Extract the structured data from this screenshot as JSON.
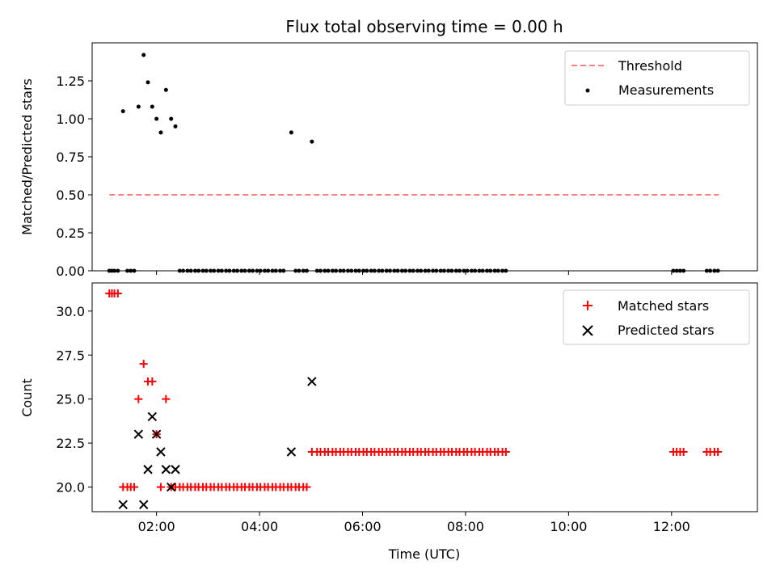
{
  "chart_data": [
    {
      "type": "scatter",
      "title": "Flux total observing time = 0.00 h",
      "ylabel": "Matched/Predicted stars",
      "xlabel": "",
      "xlim": [
        "00:45",
        "13:40"
      ],
      "ylim": [
        0.0,
        1.5
      ],
      "xticks": [
        "02:00",
        "04:00",
        "06:00",
        "08:00",
        "10:00",
        "12:00"
      ],
      "yticks": [
        "0.00",
        "0.25",
        "0.50",
        "0.75",
        "1.00",
        "1.25"
      ],
      "legend_position": "top-right",
      "legend": [
        "Threshold",
        "Measurements"
      ],
      "threshold": {
        "name": "Threshold",
        "y": 0.5,
        "x_start": "01:05",
        "x_end": "12:55",
        "color": "#ff7f7f",
        "style": "dashed"
      },
      "measurements": {
        "name": "Measurements",
        "color": "#000000",
        "points": [
          [
            "01:05",
            0
          ],
          [
            "01:08",
            0
          ],
          [
            "01:11",
            0
          ],
          [
            "01:15",
            0
          ],
          [
            "01:21",
            1.05
          ],
          [
            "01:26",
            0
          ],
          [
            "01:30",
            0
          ],
          [
            "01:34",
            0
          ],
          [
            "01:39",
            1.08
          ],
          [
            "01:45",
            1.42
          ],
          [
            "01:50",
            1.24
          ],
          [
            "01:55",
            1.08
          ],
          [
            "02:00",
            1.0
          ],
          [
            "02:05",
            0.91
          ],
          [
            "02:11",
            1.19
          ],
          [
            "02:17",
            1.0
          ],
          [
            "02:22",
            0.95
          ],
          [
            "02:27",
            0
          ],
          [
            "02:31",
            0
          ],
          [
            "02:36",
            0
          ],
          [
            "02:40",
            0
          ],
          [
            "02:45",
            0
          ],
          [
            "02:49",
            0
          ],
          [
            "02:54",
            0
          ],
          [
            "02:58",
            0
          ],
          [
            "03:03",
            0
          ],
          [
            "03:07",
            0
          ],
          [
            "03:12",
            0
          ],
          [
            "03:16",
            0
          ],
          [
            "03:21",
            0
          ],
          [
            "03:25",
            0
          ],
          [
            "03:30",
            0
          ],
          [
            "03:34",
            0
          ],
          [
            "03:39",
            0
          ],
          [
            "03:43",
            0
          ],
          [
            "03:48",
            0
          ],
          [
            "03:52",
            0
          ],
          [
            "03:57",
            0
          ],
          [
            "04:01",
            0
          ],
          [
            "04:06",
            0
          ],
          [
            "04:10",
            0
          ],
          [
            "04:15",
            0
          ],
          [
            "04:19",
            0
          ],
          [
            "04:24",
            0
          ],
          [
            "04:28",
            0
          ],
          [
            "04:37",
            0.91
          ],
          [
            "04:42",
            0
          ],
          [
            "04:46",
            0
          ],
          [
            "04:51",
            0
          ],
          [
            "04:55",
            0
          ],
          [
            "05:01",
            0.85
          ],
          [
            "05:07",
            0
          ],
          [
            "05:11",
            0
          ],
          [
            "05:16",
            0
          ],
          [
            "05:20",
            0
          ],
          [
            "05:25",
            0
          ],
          [
            "05:29",
            0
          ],
          [
            "05:34",
            0
          ],
          [
            "05:38",
            0
          ],
          [
            "05:43",
            0
          ],
          [
            "05:47",
            0
          ],
          [
            "05:52",
            0
          ],
          [
            "05:56",
            0
          ],
          [
            "06:01",
            0
          ],
          [
            "06:05",
            0
          ],
          [
            "06:10",
            0
          ],
          [
            "06:14",
            0
          ],
          [
            "06:19",
            0
          ],
          [
            "06:23",
            0
          ],
          [
            "06:28",
            0
          ],
          [
            "06:32",
            0
          ],
          [
            "06:37",
            0
          ],
          [
            "06:41",
            0
          ],
          [
            "06:46",
            0
          ],
          [
            "06:50",
            0
          ],
          [
            "06:55",
            0
          ],
          [
            "06:59",
            0
          ],
          [
            "07:04",
            0
          ],
          [
            "07:08",
            0
          ],
          [
            "07:13",
            0
          ],
          [
            "07:17",
            0
          ],
          [
            "07:22",
            0
          ],
          [
            "07:26",
            0
          ],
          [
            "07:31",
            0
          ],
          [
            "07:35",
            0
          ],
          [
            "07:40",
            0
          ],
          [
            "07:44",
            0
          ],
          [
            "07:49",
            0
          ],
          [
            "07:53",
            0
          ],
          [
            "07:58",
            0
          ],
          [
            "08:02",
            0
          ],
          [
            "08:07",
            0
          ],
          [
            "08:11",
            0
          ],
          [
            "08:16",
            0
          ],
          [
            "08:20",
            0
          ],
          [
            "08:25",
            0
          ],
          [
            "08:29",
            0
          ],
          [
            "08:34",
            0
          ],
          [
            "08:38",
            0
          ],
          [
            "08:43",
            0
          ],
          [
            "08:47",
            0
          ],
          [
            "12:02",
            0
          ],
          [
            "12:06",
            0
          ],
          [
            "12:10",
            0
          ],
          [
            "12:14",
            0
          ],
          [
            "12:41",
            0
          ],
          [
            "12:45",
            0
          ],
          [
            "12:50",
            0
          ],
          [
            "12:54",
            0
          ]
        ]
      }
    },
    {
      "type": "scatter",
      "xlabel": "Time (UTC)",
      "ylabel": "Count",
      "xlim": [
        "00:45",
        "13:40"
      ],
      "ylim": [
        18.6,
        31.6
      ],
      "xticks": [
        "02:00",
        "04:00",
        "06:00",
        "08:00",
        "10:00",
        "12:00"
      ],
      "yticks": [
        "20.0",
        "22.5",
        "25.0",
        "27.5",
        "30.0"
      ],
      "legend_position": "top-right",
      "legend": [
        "Matched stars",
        "Predicted stars"
      ],
      "series": [
        {
          "name": "Matched stars",
          "color": "#ff0000",
          "marker": "plus",
          "points": [
            [
              "01:05",
              31
            ],
            [
              "01:08",
              31
            ],
            [
              "01:11",
              31
            ],
            [
              "01:15",
              31
            ],
            [
              "01:21",
              20
            ],
            [
              "01:26",
              20
            ],
            [
              "01:30",
              20
            ],
            [
              "01:34",
              20
            ],
            [
              "01:39",
              25
            ],
            [
              "01:45",
              27
            ],
            [
              "01:50",
              26
            ],
            [
              "01:55",
              26
            ],
            [
              "02:00",
              23
            ],
            [
              "02:05",
              20
            ],
            [
              "02:11",
              25
            ],
            [
              "02:17",
              20
            ],
            [
              "02:22",
              20
            ],
            [
              "02:27",
              20
            ],
            [
              "02:31",
              20
            ],
            [
              "02:36",
              20
            ],
            [
              "02:40",
              20
            ],
            [
              "02:45",
              20
            ],
            [
              "02:49",
              20
            ],
            [
              "02:54",
              20
            ],
            [
              "02:58",
              20
            ],
            [
              "03:03",
              20
            ],
            [
              "03:07",
              20
            ],
            [
              "03:12",
              20
            ],
            [
              "03:16",
              20
            ],
            [
              "03:21",
              20
            ],
            [
              "03:25",
              20
            ],
            [
              "03:30",
              20
            ],
            [
              "03:34",
              20
            ],
            [
              "03:39",
              20
            ],
            [
              "03:43",
              20
            ],
            [
              "03:48",
              20
            ],
            [
              "03:52",
              20
            ],
            [
              "03:57",
              20
            ],
            [
              "04:01",
              20
            ],
            [
              "04:06",
              20
            ],
            [
              "04:10",
              20
            ],
            [
              "04:15",
              20
            ],
            [
              "04:19",
              20
            ],
            [
              "04:24",
              20
            ],
            [
              "04:28",
              20
            ],
            [
              "04:33",
              20
            ],
            [
              "04:37",
              20
            ],
            [
              "04:42",
              20
            ],
            [
              "04:46",
              20
            ],
            [
              "04:51",
              20
            ],
            [
              "04:55",
              20
            ],
            [
              "05:01",
              22
            ],
            [
              "05:07",
              22
            ],
            [
              "05:11",
              22
            ],
            [
              "05:16",
              22
            ],
            [
              "05:20",
              22
            ],
            [
              "05:25",
              22
            ],
            [
              "05:29",
              22
            ],
            [
              "05:34",
              22
            ],
            [
              "05:38",
              22
            ],
            [
              "05:43",
              22
            ],
            [
              "05:47",
              22
            ],
            [
              "05:52",
              22
            ],
            [
              "05:56",
              22
            ],
            [
              "06:01",
              22
            ],
            [
              "06:05",
              22
            ],
            [
              "06:10",
              22
            ],
            [
              "06:14",
              22
            ],
            [
              "06:19",
              22
            ],
            [
              "06:23",
              22
            ],
            [
              "06:28",
              22
            ],
            [
              "06:32",
              22
            ],
            [
              "06:37",
              22
            ],
            [
              "06:41",
              22
            ],
            [
              "06:46",
              22
            ],
            [
              "06:50",
              22
            ],
            [
              "06:55",
              22
            ],
            [
              "06:59",
              22
            ],
            [
              "07:04",
              22
            ],
            [
              "07:08",
              22
            ],
            [
              "07:13",
              22
            ],
            [
              "07:17",
              22
            ],
            [
              "07:22",
              22
            ],
            [
              "07:26",
              22
            ],
            [
              "07:31",
              22
            ],
            [
              "07:35",
              22
            ],
            [
              "07:40",
              22
            ],
            [
              "07:44",
              22
            ],
            [
              "07:49",
              22
            ],
            [
              "07:53",
              22
            ],
            [
              "07:58",
              22
            ],
            [
              "08:02",
              22
            ],
            [
              "08:07",
              22
            ],
            [
              "08:11",
              22
            ],
            [
              "08:16",
              22
            ],
            [
              "08:20",
              22
            ],
            [
              "08:25",
              22
            ],
            [
              "08:29",
              22
            ],
            [
              "08:34",
              22
            ],
            [
              "08:38",
              22
            ],
            [
              "08:43",
              22
            ],
            [
              "08:47",
              22
            ],
            [
              "12:02",
              22
            ],
            [
              "12:06",
              22
            ],
            [
              "12:10",
              22
            ],
            [
              "12:14",
              22
            ],
            [
              "12:41",
              22
            ],
            [
              "12:45",
              22
            ],
            [
              "12:50",
              22
            ],
            [
              "12:54",
              22
            ]
          ]
        },
        {
          "name": "Predicted stars",
          "color": "#000000",
          "marker": "x",
          "points": [
            [
              "01:21",
              19
            ],
            [
              "01:39",
              23
            ],
            [
              "01:45",
              19
            ],
            [
              "01:50",
              21
            ],
            [
              "01:55",
              24
            ],
            [
              "02:00",
              23
            ],
            [
              "02:05",
              22
            ],
            [
              "02:11",
              21
            ],
            [
              "02:17",
              20
            ],
            [
              "02:22",
              21
            ],
            [
              "04:37",
              22
            ],
            [
              "05:01",
              26
            ]
          ]
        }
      ]
    }
  ]
}
